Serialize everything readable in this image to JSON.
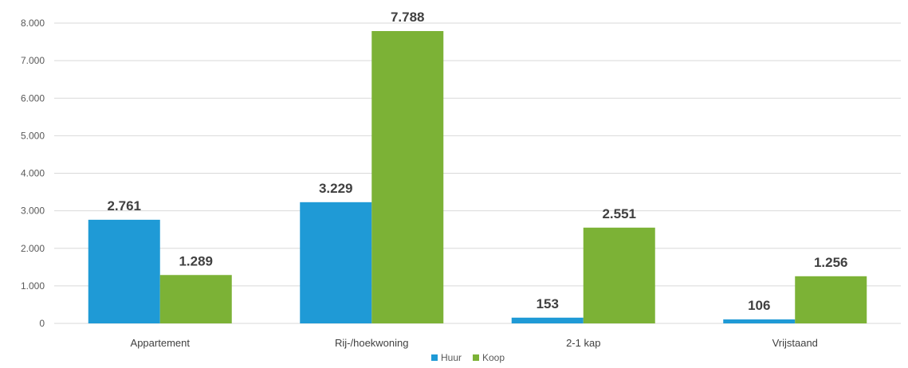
{
  "chart_data": {
    "type": "bar",
    "categories": [
      "Appartement",
      "Rij-/hoekwoning",
      "2-1 kap",
      "Vrijstaand"
    ],
    "series": [
      {
        "name": "Huur",
        "values": [
          2761,
          3229,
          153,
          106
        ],
        "labels": [
          "2.761",
          "3.229",
          "153",
          "106"
        ],
        "color": "#1f9ad6"
      },
      {
        "name": "Koop",
        "values": [
          1289,
          7788,
          2551,
          1256
        ],
        "labels": [
          "1.289",
          "7.788",
          "2.551",
          "1.256"
        ],
        "color": "#7cb236"
      }
    ],
    "ylim": [
      0,
      8000
    ],
    "yticks": [
      0,
      1000,
      2000,
      3000,
      4000,
      5000,
      6000,
      7000,
      8000
    ],
    "ytick_labels": [
      "0",
      "1.000",
      "2.000",
      "3.000",
      "4.000",
      "5.000",
      "6.000",
      "7.000",
      "8.000"
    ],
    "grid": true,
    "legend_position": "bottom-center",
    "title": "",
    "xlabel": "",
    "ylabel": ""
  }
}
